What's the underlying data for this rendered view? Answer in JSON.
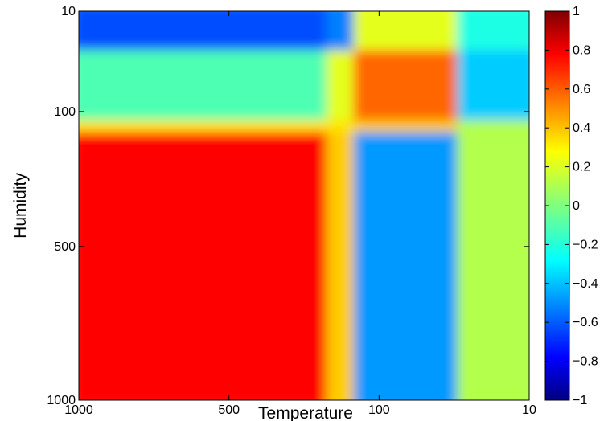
{
  "chart_data": {
    "type": "heatmap",
    "xlabel": "Temperature",
    "ylabel": "Humidity",
    "x_ticks": [
      "1000",
      "500",
      "100",
      "10"
    ],
    "y_ticks": [
      "10",
      "100",
      "500",
      "1000"
    ],
    "colorbar": {
      "min": -1,
      "max": 1,
      "ticks": [
        "1",
        "0.8",
        "0.6",
        "0.4",
        "0.2",
        "0",
        "−0.2",
        "−0.4",
        "−0.6",
        "−0.8",
        "−1"
      ],
      "colormap": "jet"
    },
    "x_bands": [
      {
        "from": 0.0,
        "to": 0.55
      },
      {
        "from": 0.55,
        "to": 0.61
      },
      {
        "from": 0.61,
        "to": 0.84
      },
      {
        "from": 0.84,
        "to": 1.0
      }
    ],
    "y_bands": [
      {
        "from": 0.0,
        "to": 0.1
      },
      {
        "from": 0.1,
        "to": 0.28
      },
      {
        "from": 0.28,
        "to": 0.31
      },
      {
        "from": 0.31,
        "to": 1.0
      }
    ],
    "values": [
      [
        -0.6,
        -0.5,
        0.2,
        -0.2
      ],
      [
        -0.1,
        0.2,
        0.55,
        -0.35
      ],
      [
        0.3,
        0.3,
        0.35,
        0.1
      ],
      [
        0.75,
        0.35,
        -0.45,
        0.1
      ]
    ]
  }
}
